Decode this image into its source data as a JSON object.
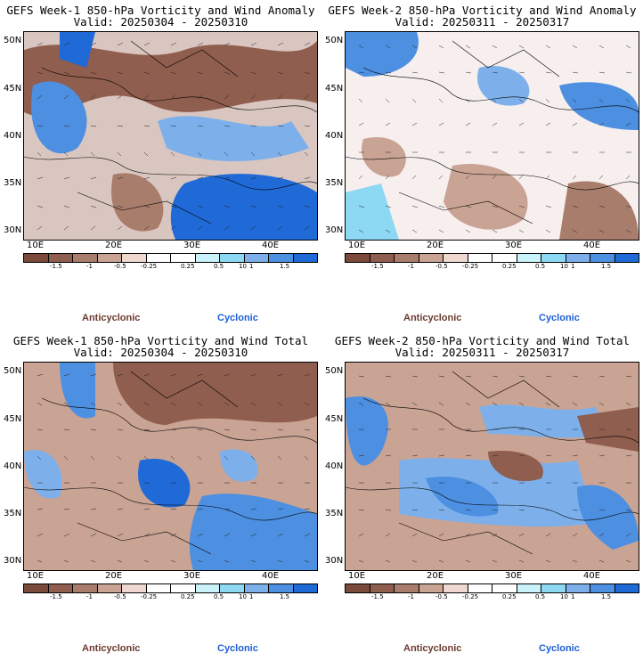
{
  "panels": [
    {
      "title": "GEFS Week-1 850-hPa Vorticity and Wind Anomaly",
      "valid": "Valid: 20250304 - 20250310"
    },
    {
      "title": "GEFS Week-2 850-hPa Vorticity and Wind Anomaly",
      "valid": "Valid: 20250311 - 20250317"
    },
    {
      "title": "GEFS Week-1 850-hPa Vorticity and Wind Total",
      "valid": "Valid: 20250304 - 20250310"
    },
    {
      "title": "GEFS Week-2 850-hPa Vorticity and Wind Total",
      "valid": "Valid: 20250311 - 20250317"
    }
  ],
  "lat_labels": [
    "50N",
    "45N",
    "40N",
    "35N",
    "30N"
  ],
  "lon_labels": [
    "10E",
    "20E",
    "30E",
    "40E"
  ],
  "colorbar": {
    "labels": [
      "-1.5",
      "-1",
      "-0.5",
      "-0.25",
      "0.25",
      "0.5",
      "1",
      "1.5"
    ],
    "scale_label": "10",
    "colors": [
      "#7b4a3a",
      "#8f5e4e",
      "#a87d6c",
      "#c9a394",
      "#eed8d0",
      "#ffffff",
      "#ffffff",
      "#c9f2fb",
      "#8dd8f2",
      "#7db0ea",
      "#4d8fe0",
      "#1f6ad6"
    ]
  },
  "legend": {
    "anticyclonic": "Anticyclonic",
    "cyclonic": "Cyclonic"
  },
  "colors": {
    "anticyclonic": "#6b3a2e",
    "cyclonic": "#1c5ed6"
  }
}
